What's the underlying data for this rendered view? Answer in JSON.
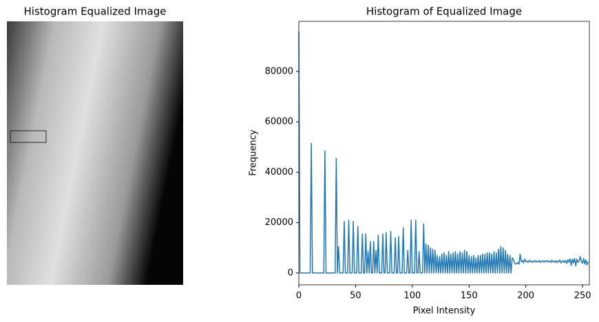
{
  "image_panel": {
    "title": "Histogram Equalized Image"
  },
  "chart_data": {
    "type": "line",
    "title": "Histogram of Equalized Image",
    "x_label": "Pixel Intensity",
    "y_label": "Frequency",
    "color": "#1f77b4",
    "xlim": [
      0,
      256
    ],
    "ylim": [
      -4700,
      99900
    ],
    "xticks": [
      0,
      50,
      100,
      150,
      200,
      250
    ],
    "yticks": [
      0,
      20000,
      40000,
      60000,
      80000
    ],
    "x": [
      0,
      1,
      2,
      3,
      4,
      5,
      6,
      7,
      8,
      9,
      10,
      11,
      12,
      13,
      14,
      15,
      16,
      17,
      18,
      19,
      20,
      21,
      22,
      23,
      24,
      25,
      26,
      27,
      28,
      29,
      30,
      31,
      32,
      33,
      34,
      35,
      36,
      37,
      38,
      39,
      40,
      41,
      42,
      43,
      44,
      45,
      46,
      47,
      48,
      49,
      50,
      51,
      52,
      53,
      54,
      55,
      56,
      57,
      58,
      59,
      60,
      61,
      62,
      63,
      64,
      65,
      66,
      67,
      68,
      69,
      70,
      71,
      72,
      73,
      74,
      75,
      76,
      77,
      78,
      79,
      80,
      81,
      82,
      83,
      84,
      85,
      86,
      87,
      88,
      89,
      90,
      91,
      92,
      93,
      94,
      95,
      96,
      97,
      98,
      99,
      100,
      101,
      102,
      103,
      104,
      105,
      106,
      107,
      108,
      109,
      110,
      111,
      112,
      113,
      114,
      115,
      116,
      117,
      118,
      119,
      120,
      121,
      122,
      123,
      124,
      125,
      126,
      127,
      128,
      129,
      130,
      131,
      132,
      133,
      134,
      135,
      136,
      137,
      138,
      139,
      140,
      141,
      142,
      143,
      144,
      145,
      146,
      147,
      148,
      149,
      150,
      151,
      152,
      153,
      154,
      155,
      156,
      157,
      158,
      159,
      160,
      161,
      162,
      163,
      164,
      165,
      166,
      167,
      168,
      169,
      170,
      171,
      172,
      173,
      174,
      175,
      176,
      177,
      178,
      179,
      180,
      181,
      182,
      183,
      184,
      185,
      186,
      187,
      188,
      189,
      190,
      191,
      192,
      193,
      194,
      195,
      196,
      197,
      198,
      199,
      200,
      201,
      202,
      203,
      204,
      205,
      206,
      207,
      208,
      209,
      210,
      211,
      212,
      213,
      214,
      215,
      216,
      217,
      218,
      219,
      220,
      221,
      222,
      223,
      224,
      225,
      226,
      227,
      228,
      229,
      230,
      231,
      232,
      233,
      234,
      235,
      236,
      237,
      238,
      239,
      240,
      241,
      242,
      243,
      244,
      245,
      246,
      247,
      248,
      249,
      250,
      251,
      252,
      253,
      254,
      255
    ],
    "values": [
      96000,
      0,
      0,
      0,
      0,
      0,
      0,
      0,
      0,
      0,
      0,
      51500,
      0,
      0,
      0,
      0,
      0,
      0,
      0,
      0,
      0,
      0,
      0,
      48500,
      0,
      0,
      0,
      0,
      0,
      0,
      0,
      0,
      0,
      45500,
      0,
      10500,
      0,
      0,
      0,
      0,
      20500,
      0,
      0,
      0,
      21000,
      0,
      0,
      0,
      20500,
      0,
      0,
      0,
      18500,
      0,
      0,
      0,
      15500,
      0,
      0,
      15500,
      0,
      8500,
      0,
      12500,
      0,
      0,
      12500,
      0,
      9000,
      0,
      15000,
      0,
      0,
      0,
      15500,
      0,
      0,
      16000,
      0,
      0,
      0,
      16500,
      0,
      0,
      0,
      14000,
      0,
      0,
      14500,
      0,
      0,
      0,
      18000,
      0,
      0,
      0,
      9000,
      0,
      0,
      21000,
      0,
      0,
      0,
      21000,
      0,
      0,
      8500,
      0,
      0,
      0,
      19500,
      0,
      11500,
      0,
      11000,
      0,
      10000,
      0,
      9500,
      0,
      9000,
      0,
      7000,
      0,
      6500,
      0,
      7500,
      0,
      8000,
      0,
      7000,
      0,
      8500,
      0,
      7500,
      0,
      8000,
      0,
      8500,
      0,
      7500,
      0,
      8500,
      0,
      8000,
      0,
      9000,
      0,
      8500,
      0,
      7000,
      0,
      6500,
      0,
      7000,
      0,
      6000,
      0,
      7000,
      0,
      7000,
      0,
      7500,
      0,
      7500,
      0,
      8000,
      0,
      8000,
      0,
      7500,
      0,
      8500,
      0,
      8000,
      0,
      9500,
      0,
      10500,
      0,
      10000,
      0,
      9000,
      0,
      7500,
      0,
      7000,
      0,
      6000,
      5500,
      4000,
      3500,
      3800,
      4200,
      3500,
      7500,
      4500,
      5000,
      4000,
      5500,
      4500,
      4800,
      4200,
      5000,
      4500,
      4800,
      4200,
      4600,
      5000,
      4300,
      4700,
      4400,
      5000,
      4200,
      4600,
      4900,
      4300,
      4800,
      4500,
      5000,
      4400,
      4700,
      4200,
      5100,
      4500,
      4300,
      4900,
      4100,
      4800,
      4400,
      5200,
      4000,
      4600,
      4900,
      4200,
      5000,
      3800,
      5200,
      4300,
      5600,
      3000,
      5500,
      4000,
      5800,
      2800,
      5500,
      4200,
      4800,
      6500,
      4500,
      3800,
      5800,
      3500,
      5200,
      3200,
      4500
    ]
  }
}
